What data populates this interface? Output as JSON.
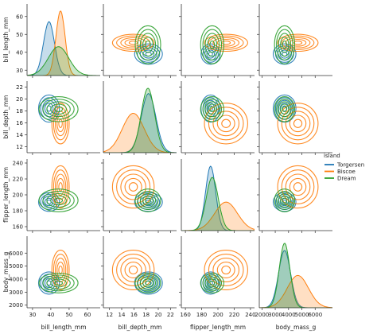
{
  "chart_data": {
    "type": "pairplot",
    "diag_kind": "kde",
    "offdiag_kind": "kde",
    "hue": "island",
    "variables": [
      "bill_length_mm",
      "bill_depth_mm",
      "flipper_length_mm",
      "body_mass_g"
    ],
    "axes": {
      "bill_length_mm": {
        "label": "bill_length_mm",
        "range": [
          27,
          67
        ],
        "ticks": [
          30,
          40,
          50,
          60
        ],
        "tick_labels": [
          "30",
          "40",
          "50",
          "60"
        ]
      },
      "bill_depth_mm": {
        "label": "bill_depth_mm",
        "range": [
          11,
          23
        ],
        "ticks": [
          12,
          14,
          16,
          18,
          20,
          22
        ],
        "tick_labels": [
          "12",
          "14",
          "16",
          "18",
          "20",
          "22"
        ]
      },
      "flipper_length_mm": {
        "label": "flipper_length_mm",
        "range": [
          155,
          245
        ],
        "ticks": [
          160,
          180,
          200,
          220,
          240
        ],
        "tick_labels": [
          "160",
          "180",
          "200",
          "220",
          "240"
        ]
      },
      "body_mass_g": {
        "label": "body_mass_g",
        "range": [
          1800,
          7300
        ],
        "ticks": [
          2000,
          3000,
          4000,
          5000,
          6000
        ],
        "tick_labels": [
          "2000",
          "3000",
          "4000",
          "5000",
          "6000"
        ]
      }
    },
    "legend": {
      "title": "island",
      "placement": "right",
      "entries": [
        "Torgersen",
        "Biscoe",
        "Dream"
      ]
    },
    "series": [
      {
        "name": "Torgersen",
        "color": "#1f77b4",
        "mean": {
          "bill_length_mm": 39.0,
          "bill_depth_mm": 18.4,
          "flipper_length_mm": 191,
          "body_mass_g": 3700
        },
        "sd": {
          "bill_length_mm": 3.0,
          "bill_depth_mm": 1.2,
          "flipper_length_mm": 6.2,
          "body_mass_g": 450
        }
      },
      {
        "name": "Biscoe",
        "color": "#ff7f0e",
        "mean": {
          "bill_length_mm": 45.3,
          "bill_depth_mm": 15.9,
          "flipper_length_mm": 210,
          "body_mass_g": 4700
        },
        "sd": {
          "bill_length_mm": 2.5,
          "bill_depth_mm": 1.8,
          "flipper_length_mm": 14,
          "body_mass_g": 800
        }
      },
      {
        "name": "Dream",
        "color": "#2ca02c",
        "mean": {
          "bill_length_mm": 44.2,
          "bill_depth_mm": 18.3,
          "flipper_length_mm": 193,
          "body_mass_g": 3700
        },
        "sd": {
          "bill_length_mm": 5.6,
          "bill_depth_mm": 1.1,
          "flipper_length_mm": 7.5,
          "body_mass_g": 400
        }
      }
    ]
  }
}
